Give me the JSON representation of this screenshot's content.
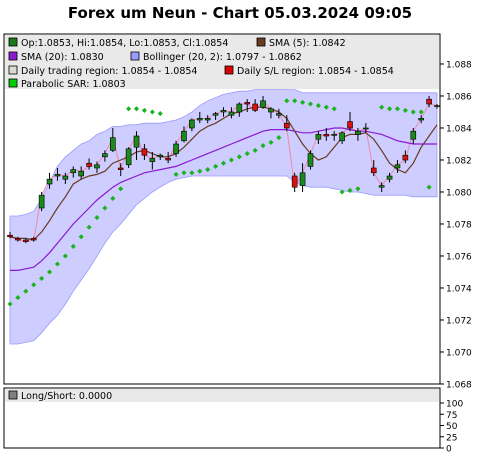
{
  "chart_data": {
    "type": "candlestick",
    "title": "Forex um Neun - Chart 05.03.2024 09:05",
    "price_ylim": [
      1.068,
      1.088
    ],
    "price_ticks": [
      "1.088",
      "1.086",
      "1.084",
      "1.082",
      "1.080",
      "1.078",
      "1.076",
      "1.074",
      "1.072",
      "1.070",
      "1.068"
    ],
    "legend": [
      {
        "label": "Op:1.0853, Hi:1.0854, Lo:1.0853, Cl:1.0854",
        "color": "#1a7a1a"
      },
      {
        "label": "SMA (5): 1.0842",
        "color": "#6b3a1f"
      },
      {
        "label": "SMA (20): 1.0830",
        "color": "#8a1ad0"
      },
      {
        "label": "Bollinger (20, 2): 1.0797 - 1.0862",
        "color": "#9a9aff"
      },
      {
        "label": "Daily trading region: 1.0854 - 1.0854",
        "color": "#ddd8d0"
      },
      {
        "label": "Daily S/L region: 1.0854 - 1.0854",
        "color": "#dd0000"
      },
      {
        "label": "Parabolic SAR: 1.0803",
        "color": "#00cc00"
      }
    ],
    "candles": [
      [
        1.0773,
        1.0775,
        1.0771,
        1.0772
      ],
      [
        1.0771,
        1.0772,
        1.0769,
        1.077
      ],
      [
        1.077,
        1.0771,
        1.0768,
        1.0769
      ],
      [
        1.0771,
        1.0772,
        1.0769,
        1.077
      ],
      [
        1.079,
        1.08,
        1.0788,
        1.0798
      ],
      [
        1.0805,
        1.0812,
        1.0802,
        1.0808
      ],
      [
        1.081,
        1.0815,
        1.0807,
        1.0811
      ],
      [
        1.0808,
        1.0812,
        1.0805,
        1.081
      ],
      [
        1.0812,
        1.0816,
        1.0809,
        1.0814
      ],
      [
        1.081,
        1.0816,
        1.0808,
        1.0813
      ],
      [
        1.0818,
        1.0821,
        1.0814,
        1.0816
      ],
      [
        1.0815,
        1.0819,
        1.0812,
        1.0817
      ],
      [
        1.0822,
        1.0826,
        1.0819,
        1.0824
      ],
      [
        1.0826,
        1.084,
        1.0825,
        1.0834
      ],
      [
        1.0815,
        1.0818,
        1.081,
        1.0814
      ],
      [
        1.0817,
        1.0828,
        1.0815,
        1.0827
      ],
      [
        1.0828,
        1.0838,
        1.082,
        1.0835
      ],
      [
        1.0827,
        1.083,
        1.082,
        1.0823
      ],
      [
        1.0819,
        1.0825,
        1.0814,
        1.0821
      ],
      [
        1.0822,
        1.0824,
        1.082,
        1.0823
      ],
      [
        1.0821,
        1.0825,
        1.0818,
        1.082
      ],
      [
        1.0824,
        1.0832,
        1.0822,
        1.083
      ],
      [
        1.0832,
        1.0841,
        1.0831,
        1.0838
      ],
      [
        1.084,
        1.0846,
        1.0838,
        1.0845
      ],
      [
        1.0845,
        1.085,
        1.0843,
        1.0846
      ],
      [
        1.0845,
        1.0848,
        1.0843,
        1.0846
      ],
      [
        1.0848,
        1.085,
        1.0845,
        1.0849
      ],
      [
        1.085,
        1.0853,
        1.0847,
        1.0851
      ],
      [
        1.0848,
        1.0853,
        1.0846,
        1.085
      ],
      [
        1.085,
        1.0856,
        1.0847,
        1.0855
      ],
      [
        1.0856,
        1.0858,
        1.085,
        1.0855
      ],
      [
        1.0855,
        1.0858,
        1.085,
        1.0851
      ],
      [
        1.0853,
        1.086,
        1.0852,
        1.0857
      ],
      [
        1.085,
        1.0853,
        1.0846,
        1.0852
      ],
      [
        1.0848,
        1.0852,
        1.0846,
        1.0849
      ],
      [
        1.0843,
        1.0848,
        1.0838,
        1.084
      ],
      [
        1.081,
        1.0812,
        1.08,
        1.0803
      ],
      [
        1.0804,
        1.0818,
        1.08,
        1.0812
      ],
      [
        1.0816,
        1.0826,
        1.0814,
        1.0824
      ],
      [
        1.0833,
        1.0838,
        1.083,
        1.0836
      ],
      [
        1.0836,
        1.084,
        1.0832,
        1.0835
      ],
      [
        1.0836,
        1.0838,
        1.0832,
        1.0836
      ],
      [
        1.0832,
        1.0838,
        1.083,
        1.0837
      ],
      [
        1.0844,
        1.085,
        1.0838,
        1.084
      ],
      [
        1.0836,
        1.084,
        1.0832,
        1.0838
      ],
      [
        1.084,
        1.0843,
        1.0837,
        1.084
      ],
      [
        1.0815,
        1.082,
        1.081,
        1.0812
      ],
      [
        1.0803,
        1.0806,
        1.08,
        1.0804
      ],
      [
        1.0808,
        1.0812,
        1.0806,
        1.081
      ],
      [
        1.0815,
        1.082,
        1.0812,
        1.0817
      ],
      [
        1.0823,
        1.0826,
        1.0818,
        1.082
      ],
      [
        1.0833,
        1.084,
        1.083,
        1.0838
      ],
      [
        1.0845,
        1.0848,
        1.0843,
        1.0846
      ],
      [
        1.0858,
        1.086,
        1.0853,
        1.0855
      ],
      [
        1.0854,
        1.0855,
        1.0852,
        1.0854
      ]
    ],
    "sma5": [
      1.0772,
      1.0771,
      1.0771,
      1.077,
      1.0775,
      1.0782,
      1.079,
      1.0797,
      1.0805,
      1.0808,
      1.081,
      1.0811,
      1.0813,
      1.0818,
      1.082,
      1.0822,
      1.0825,
      1.0826,
      1.0824,
      1.0822,
      1.0822,
      1.0824,
      1.0828,
      1.0833,
      1.0838,
      1.0841,
      1.0843,
      1.0846,
      1.0849,
      1.085,
      1.0852,
      1.0853,
      1.0853,
      1.0852,
      1.085,
      1.0846,
      1.0838,
      1.083,
      1.0824,
      1.082,
      1.0822,
      1.0828,
      1.0834,
      1.0836,
      1.0836,
      1.0837,
      1.0833,
      1.0826,
      1.0818,
      1.0814,
      1.0812,
      1.0818,
      1.0828,
      1.0835,
      1.0842
    ],
    "sma20": [
      1.0751,
      1.0751,
      1.0752,
      1.0753,
      1.0757,
      1.0762,
      1.0768,
      1.0774,
      1.078,
      1.0785,
      1.079,
      1.0795,
      1.0799,
      1.0803,
      1.0806,
      1.0808,
      1.081,
      1.0812,
      1.0813,
      1.0814,
      1.0815,
      1.0816,
      1.0818,
      1.082,
      1.0822,
      1.0824,
      1.0826,
      1.0828,
      1.083,
      1.0832,
      1.0834,
      1.0836,
      1.0838,
      1.0839,
      1.0839,
      1.0839,
      1.0838,
      1.0837,
      1.0837,
      1.0838,
      1.0839,
      1.084,
      1.084,
      1.0839,
      1.0838,
      1.0838,
      1.0837,
      1.0836,
      1.0834,
      1.0832,
      1.0831,
      1.083,
      1.083,
      1.083,
      1.083
    ],
    "boll_upper": [
      1.0785,
      1.0785,
      1.0786,
      1.0788,
      1.0796,
      1.0806,
      1.0816,
      1.0822,
      1.0826,
      1.083,
      1.0832,
      1.0836,
      1.0838,
      1.0841,
      1.0841,
      1.0842,
      1.0842,
      1.0843,
      1.0843,
      1.0843,
      1.0844,
      1.0845,
      1.0847,
      1.085,
      1.0854,
      1.0857,
      1.0859,
      1.0861,
      1.0862,
      1.0863,
      1.0863,
      1.0864,
      1.0864,
      1.0864,
      1.0864,
      1.0864,
      1.0864,
      1.0862,
      1.0862,
      1.0862,
      1.0862,
      1.0862,
      1.0862,
      1.0862,
      1.0862,
      1.0862,
      1.0862,
      1.0862,
      1.0862,
      1.0862,
      1.0862,
      1.0862,
      1.0862,
      1.0862,
      1.0862
    ],
    "boll_lower": [
      1.0705,
      1.0705,
      1.0706,
      1.0707,
      1.0712,
      1.0718,
      1.0723,
      1.073,
      1.0738,
      1.0745,
      1.0752,
      1.076,
      1.0768,
      1.0775,
      1.078,
      1.0786,
      1.0792,
      1.0796,
      1.08,
      1.0803,
      1.0806,
      1.0808,
      1.0809,
      1.081,
      1.081,
      1.081,
      1.081,
      1.081,
      1.081,
      1.081,
      1.081,
      1.081,
      1.081,
      1.081,
      1.081,
      1.081,
      1.0806,
      1.0804,
      1.0803,
      1.0803,
      1.0803,
      1.0802,
      1.0801,
      1.08,
      1.08,
      1.0799,
      1.0798,
      1.0798,
      1.0798,
      1.0798,
      1.0798,
      1.0797,
      1.0797,
      1.0797,
      1.0797
    ],
    "sar": [
      1.073,
      1.0734,
      1.0738,
      1.0742,
      1.0746,
      1.075,
      1.0755,
      1.076,
      1.0766,
      1.0772,
      1.0778,
      1.0784,
      1.079,
      1.0796,
      1.0802,
      1.0852,
      1.0852,
      1.0851,
      1.085,
      1.0849,
      1.0848,
      1.0811,
      1.0812,
      1.0812,
      1.0813,
      1.0814,
      1.0816,
      1.0818,
      1.082,
      1.0822,
      1.0824,
      1.0826,
      1.0829,
      1.0831,
      1.0834,
      1.0857,
      1.0857,
      1.0856,
      1.0855,
      1.0854,
      1.0853,
      1.0852,
      1.08,
      1.0801,
      1.0802,
      1.0803,
      1.0854,
      1.0853,
      1.0852,
      1.0852,
      1.0851,
      1.085,
      1.085,
      1.0803,
      1.0803
    ],
    "sar_dot_indices": [
      0,
      1,
      2,
      3,
      4,
      5,
      6,
      7,
      8,
      9,
      10,
      11,
      12,
      13,
      14,
      15,
      16,
      17,
      18,
      19,
      21,
      22,
      23,
      24,
      25,
      26,
      27,
      28,
      29,
      30,
      31,
      32,
      33,
      34,
      35,
      36,
      37,
      38,
      39,
      40,
      41,
      42,
      43,
      44,
      47,
      48,
      49,
      50,
      51,
      52,
      53
    ],
    "lower_panel": {
      "legend": "Long/Short: 0.0000",
      "ylim": [
        0,
        100
      ],
      "ticks": [
        "100",
        "75",
        "50",
        "25",
        "0"
      ]
    }
  }
}
